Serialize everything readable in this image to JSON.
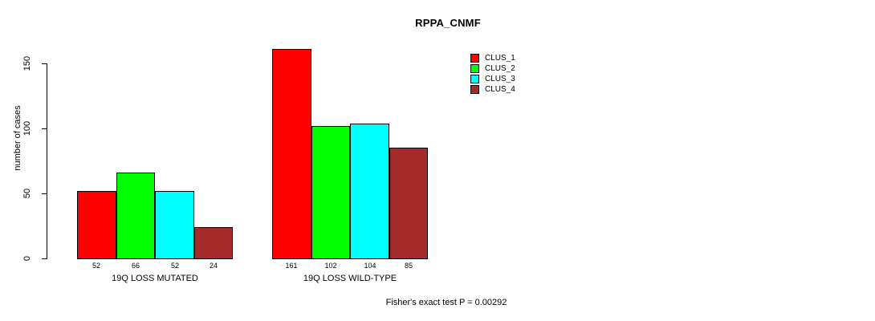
{
  "title": "RPPA_CNMF",
  "chart_data": {
    "type": "bar",
    "title": "RPPA_CNMF",
    "xlabel": "",
    "ylabel": "number of cases",
    "ylim": [
      0,
      150
    ],
    "yticks": [
      0,
      50,
      100,
      150
    ],
    "grid": false,
    "legend_position": "top-right",
    "categories": [
      "19Q LOSS MUTATED",
      "19Q LOSS WILD-TYPE"
    ],
    "series": [
      {
        "name": "CLUS_1",
        "color": "#FF0000",
        "values": [
          52,
          161
        ]
      },
      {
        "name": "CLUS_2",
        "color": "#00FF00",
        "values": [
          66,
          102
        ]
      },
      {
        "name": "CLUS_3",
        "color": "#00FFFF",
        "values": [
          52,
          104
        ]
      },
      {
        "name": "CLUS_4",
        "color": "#A52A2A",
        "values": [
          24,
          85
        ]
      }
    ],
    "bar_value_labels": [
      [
        52,
        66,
        52,
        24
      ],
      [
        161,
        102,
        104,
        85
      ]
    ],
    "annotation": "Fisher's exact test P = 0.00292"
  },
  "colors": {
    "background": "#FFFFFF",
    "axis": "#000000",
    "text": "#000000"
  }
}
